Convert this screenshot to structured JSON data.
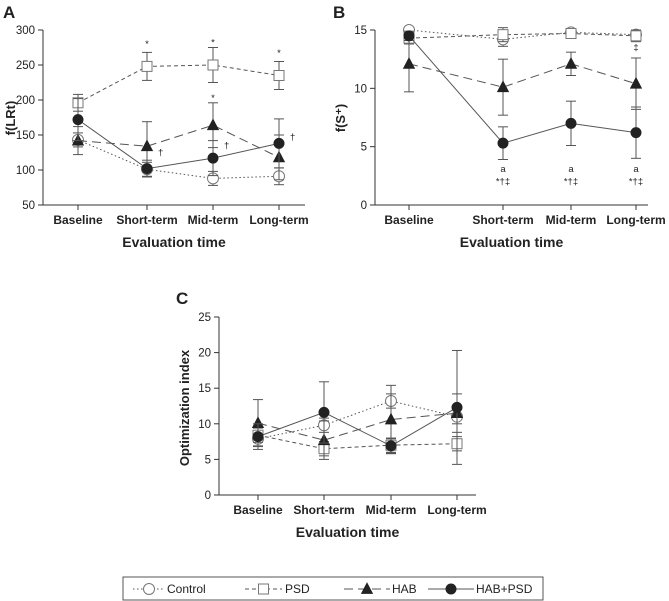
{
  "legend": {
    "items": [
      {
        "label": "Control",
        "key": "control"
      },
      {
        "label": "PSD",
        "key": "psd"
      },
      {
        "label": "HAB",
        "key": "hab"
      },
      {
        "label": "HAB+PSD",
        "key": "habpsd"
      }
    ]
  },
  "chart_data": [
    {
      "panel": "A",
      "type": "line",
      "title": "",
      "xlabel": "Evaluation time",
      "ylabel": "f(LRt)",
      "categories": [
        "Baseline",
        "Short-term",
        "Mid-term",
        "Long-term"
      ],
      "ylim": [
        50,
        300
      ],
      "yticks": [
        50,
        100,
        150,
        200,
        250,
        300
      ],
      "series": [
        {
          "name": "Control",
          "key": "control",
          "values": [
            143,
            101,
            88,
            91
          ],
          "err": [
            10,
            10,
            10,
            12
          ]
        },
        {
          "name": "PSD",
          "key": "psd",
          "values": [
            196,
            248,
            250,
            235
          ],
          "err": [
            12,
            20,
            25,
            20
          ]
        },
        {
          "name": "HAB",
          "key": "hab",
          "values": [
            142,
            134,
            164,
            118
          ],
          "err": [
            20,
            35,
            32,
            32
          ]
        },
        {
          "name": "HAB+PSD",
          "key": "habpsd",
          "values": [
            172,
            102,
            117,
            138
          ],
          "err": [
            30,
            12,
            25,
            35
          ]
        }
      ],
      "annotations": [
        {
          "text": "*",
          "x": "Short-term",
          "y": 280
        },
        {
          "text": "*",
          "x": "Mid-term",
          "y": 282
        },
        {
          "text": "*",
          "x": "Mid-term",
          "y": 203
        },
        {
          "text": "*",
          "x": "Long-term",
          "y": 267
        },
        {
          "text": "†",
          "x": "Short-term",
          "y": 125,
          "side": "right"
        },
        {
          "text": "†",
          "x": "Mid-term",
          "y": 135,
          "side": "right"
        },
        {
          "text": "†",
          "x": "Long-term",
          "y": 147,
          "side": "right"
        }
      ]
    },
    {
      "panel": "B",
      "type": "line",
      "title": "",
      "xlabel": "Evaluation time",
      "ylabel": "f(S⁺)",
      "categories": [
        "Baseline",
        "Short-term",
        "Mid-term",
        "Long-term"
      ],
      "ylim": [
        0,
        15
      ],
      "yticks": [
        0,
        5,
        10,
        15
      ],
      "series": [
        {
          "name": "Control",
          "key": "control",
          "values": [
            15,
            14.2,
            14.8,
            14.6
          ],
          "err": [
            0.2,
            0.6,
            0.3,
            0.4
          ]
        },
        {
          "name": "PSD",
          "key": "psd",
          "values": [
            14.3,
            14.6,
            14.7,
            14.5
          ],
          "err": [
            0.5,
            0.6,
            0.3,
            0.5
          ]
        },
        {
          "name": "HAB",
          "key": "hab",
          "values": [
            12.1,
            10.1,
            12.1,
            10.4
          ],
          "err": [
            2.4,
            2.4,
            1.0,
            2.2
          ]
        },
        {
          "name": "HAB+PSD",
          "key": "habpsd",
          "values": [
            14.5,
            5.3,
            7.0,
            6.2
          ],
          "err": [
            0.4,
            1.4,
            1.9,
            2.2
          ]
        }
      ],
      "annotations": [
        {
          "text": "‡",
          "x": "Long-term",
          "y": 13.5
        },
        {
          "text": "a",
          "x": "Short-term",
          "y": 3.1
        },
        {
          "text": "*†‡",
          "x": "Short-term",
          "y": 2.0
        },
        {
          "text": "a",
          "x": "Mid-term",
          "y": 3.1
        },
        {
          "text": "*†‡",
          "x": "Mid-term",
          "y": 2.0
        },
        {
          "text": "a",
          "x": "Long-term",
          "y": 3.1
        },
        {
          "text": "*†‡",
          "x": "Long-term",
          "y": 2.0
        }
      ]
    },
    {
      "panel": "C",
      "type": "line",
      "title": "",
      "xlabel": "Evaluation time",
      "ylabel": "Optimization index",
      "categories": [
        "Baseline",
        "Short-term",
        "Mid-term",
        "Long-term"
      ],
      "ylim": [
        0,
        25
      ],
      "yticks": [
        0,
        5,
        10,
        15,
        20,
        25
      ],
      "series": [
        {
          "name": "Control",
          "key": "control",
          "values": [
            7.9,
            9.8,
            13.2,
            11.0
          ],
          "err": [
            1.0,
            1.0,
            1.0,
            1.0
          ]
        },
        {
          "name": "PSD",
          "key": "psd",
          "values": [
            8.4,
            6.5,
            7.0,
            7.2
          ],
          "err": [
            1.0,
            1.0,
            1.0,
            1.0
          ]
        },
        {
          "name": "HAB",
          "key": "hab",
          "values": [
            10.1,
            7.7,
            10.6,
            11.5
          ],
          "err": [
            3.3,
            2.7,
            4.8,
            2.7
          ]
        },
        {
          "name": "HAB+PSD",
          "key": "habpsd",
          "values": [
            8.2,
            11.6,
            6.9,
            12.3
          ],
          "err": [
            1.8,
            4.3,
            1.0,
            8.0
          ]
        }
      ],
      "annotations": []
    }
  ]
}
